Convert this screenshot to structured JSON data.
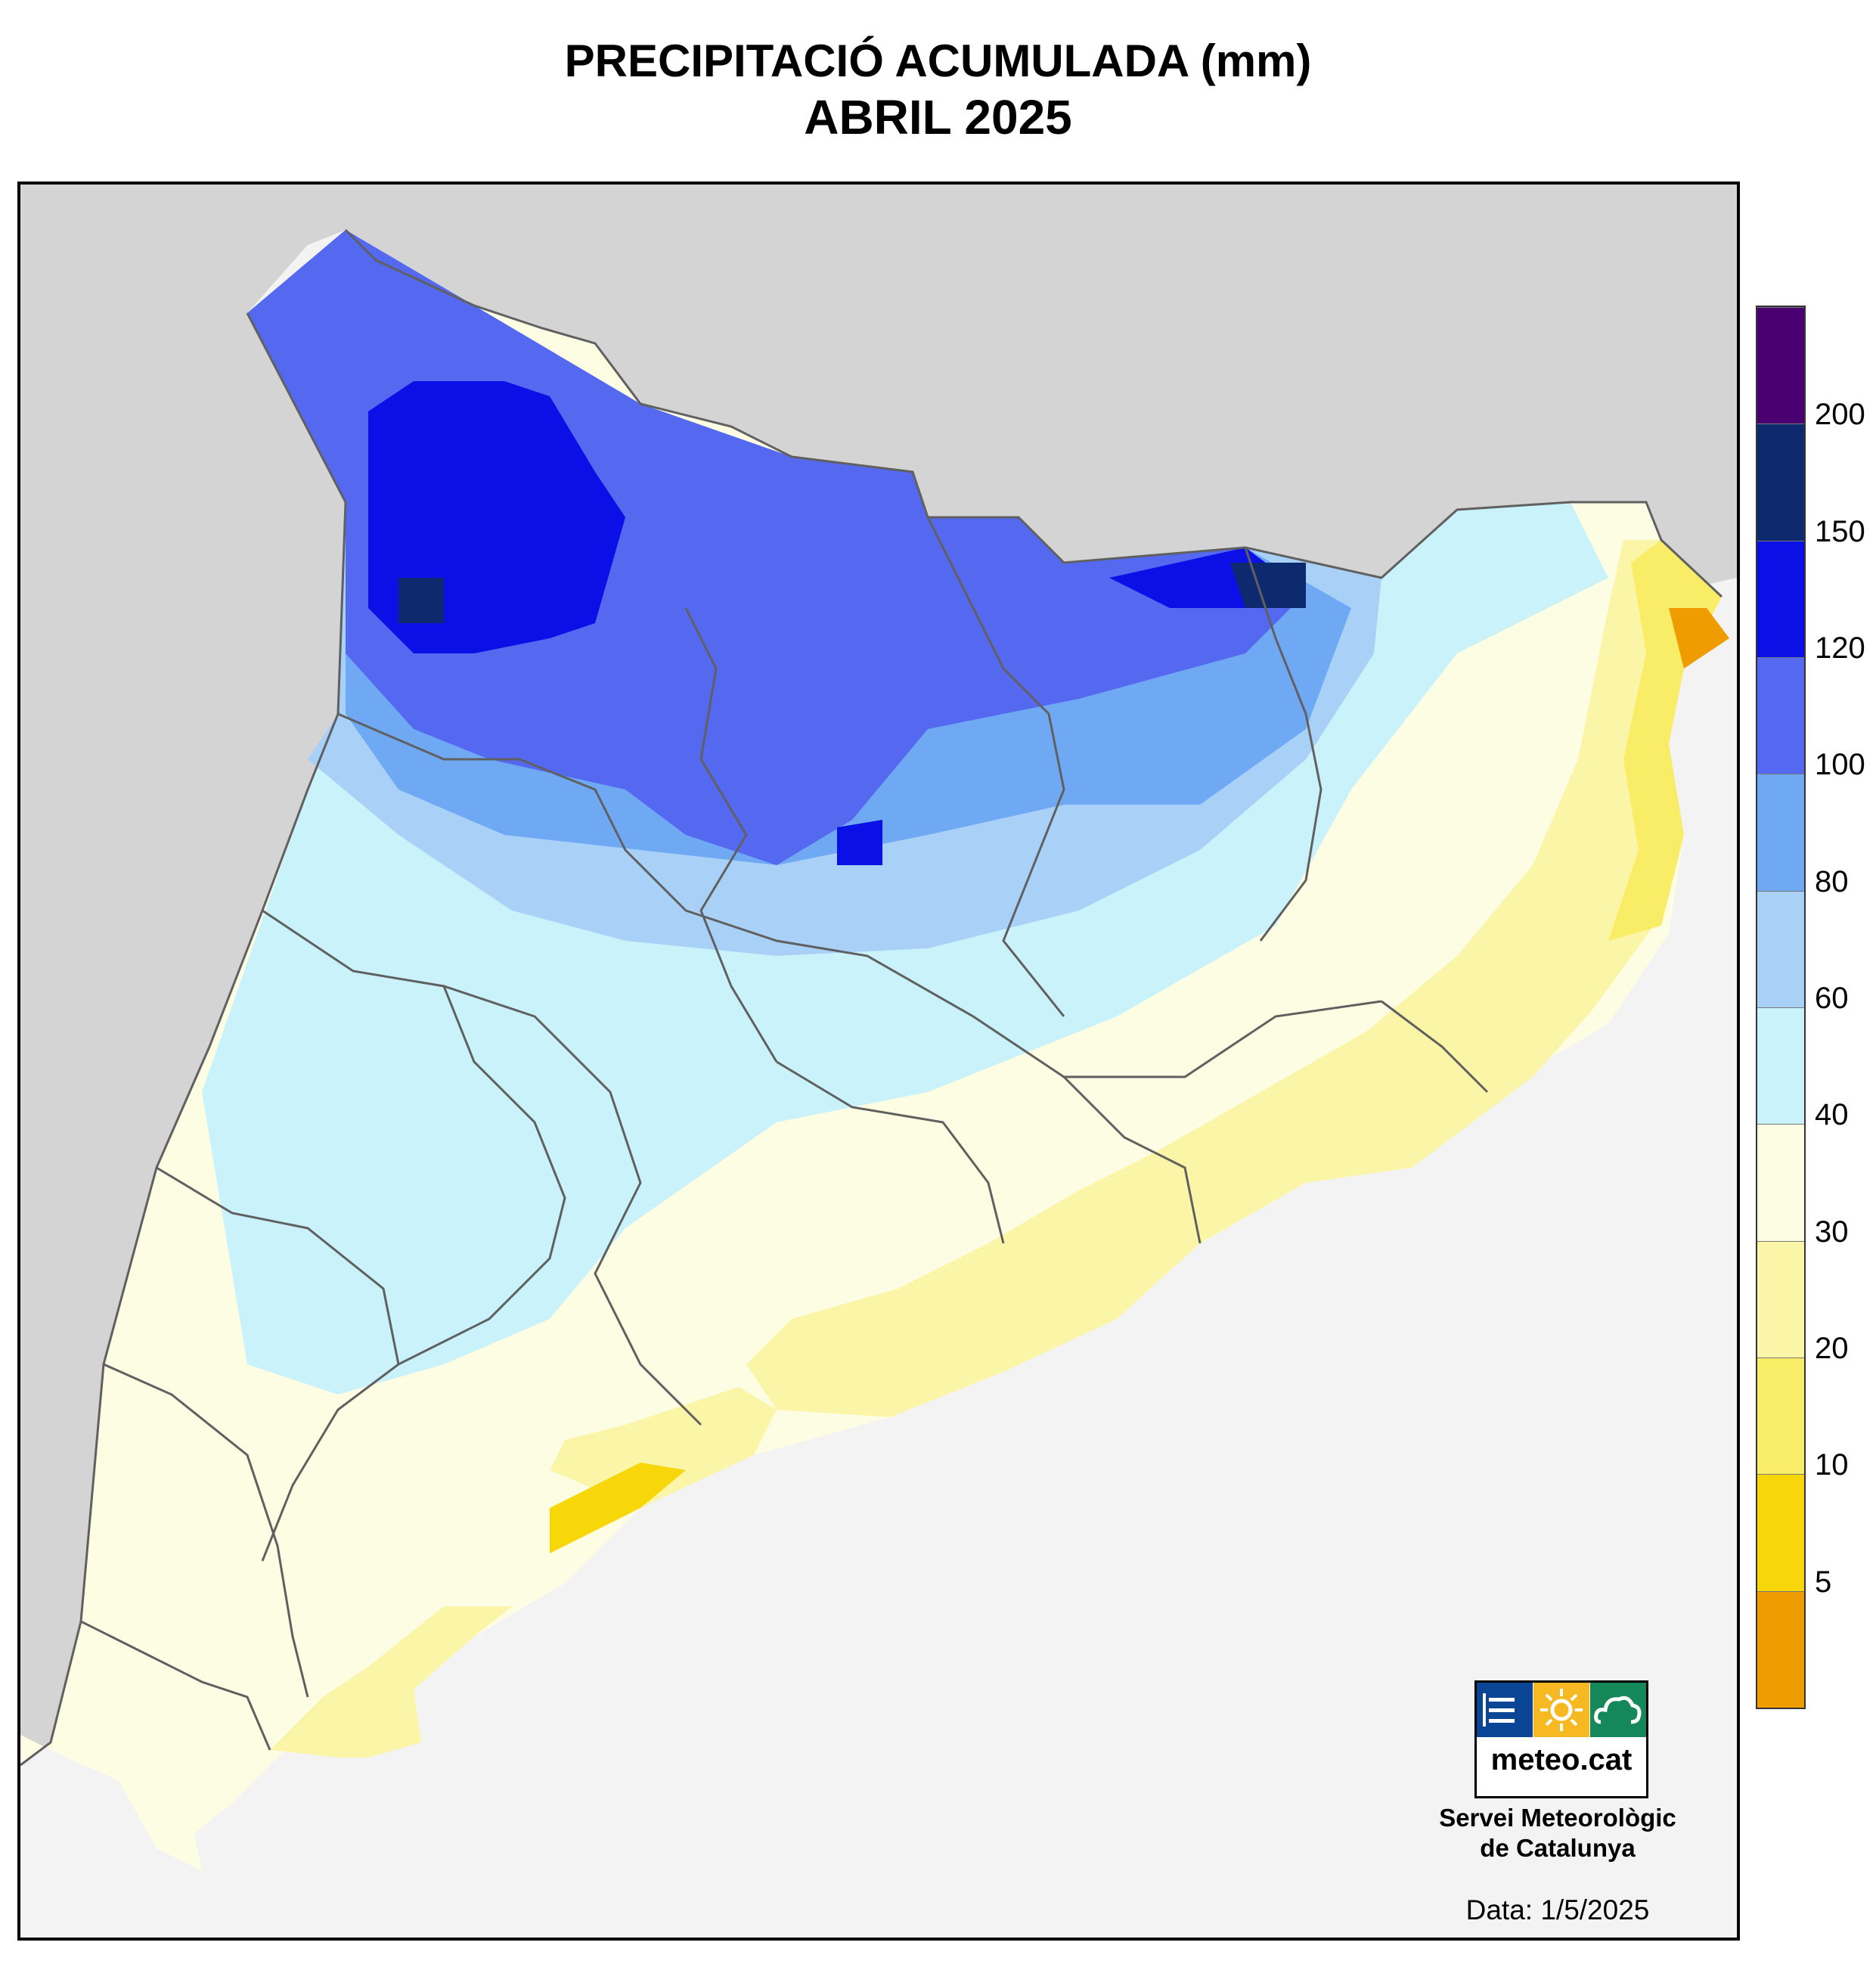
{
  "title": "PRECIPITACIÓ ACUMULADA (mm)",
  "subtitle": "ABRIL 2025",
  "legend": {
    "ticks": [
      "200",
      "150",
      "120",
      "100",
      "80",
      "60",
      "40",
      "30",
      "20",
      "10",
      "5"
    ],
    "colors": [
      "#4a0070",
      "#0d2a6e",
      "#0a10e6",
      "#5568f0",
      "#6fa9f4",
      "#a9d1f8",
      "#c9f2fb",
      "#fdfde4",
      "#fbf5a8",
      "#f9ec66",
      "#f7d60a",
      "#ef9c00"
    ]
  },
  "colors": {
    "sea": "#f3f3f3",
    "relief": "#d4d4d4",
    "border": "#606060",
    "logo_blue": "#0a4596",
    "logo_yellow": "#f6b922",
    "logo_green": "#15885a"
  },
  "logo": {
    "text": "meteo.cat",
    "icons": [
      "lines-icon",
      "sun-icon",
      "cloud-icon"
    ]
  },
  "organization": {
    "line1": "Servei Meteorològic",
    "line2": "de Catalunya"
  },
  "date": "Data: 1/5/2025"
}
